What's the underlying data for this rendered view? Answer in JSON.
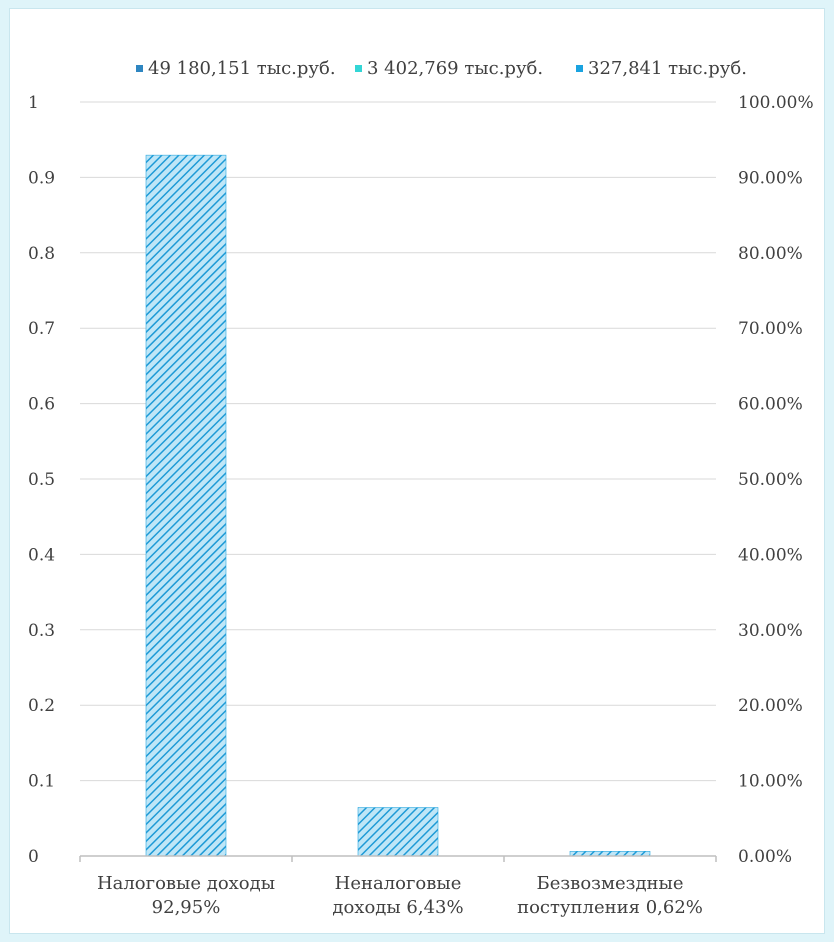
{
  "chart_data": {
    "type": "bar",
    "categories": [
      [
        "Налоговые доходы",
        "92,95%"
      ],
      [
        "Неналоговые",
        "доходы 6,43%"
      ],
      [
        "Безвозмездные",
        "поступления 0,62%"
      ]
    ],
    "values": [
      0.9295,
      0.0643,
      0.0062
    ],
    "legend": [
      "49 180,151 тыс.руб.",
      "3 402,769 тыс.руб.",
      "327,841 тыс.руб."
    ],
    "legend_colors": [
      "#2e86c1",
      "#33d6d6",
      "#1aa3e0"
    ],
    "legend_position": "top",
    "left_axis": {
      "ylim": [
        0,
        1
      ],
      "ticks": [
        "0",
        "0.1",
        "0.2",
        "0.3",
        "0.4",
        "0.5",
        "0.6",
        "0.7",
        "0.8",
        "0.9",
        "1"
      ]
    },
    "right_axis": {
      "ylim": [
        0,
        1
      ],
      "ticks": [
        "0.00%",
        "10.00%",
        "20.00%",
        "30.00%",
        "40.00%",
        "50.00%",
        "60.00%",
        "70.00%",
        "80.00%",
        "90.00%",
        "100.00%"
      ]
    },
    "grid": true,
    "bar_color": "#29a8e0"
  }
}
